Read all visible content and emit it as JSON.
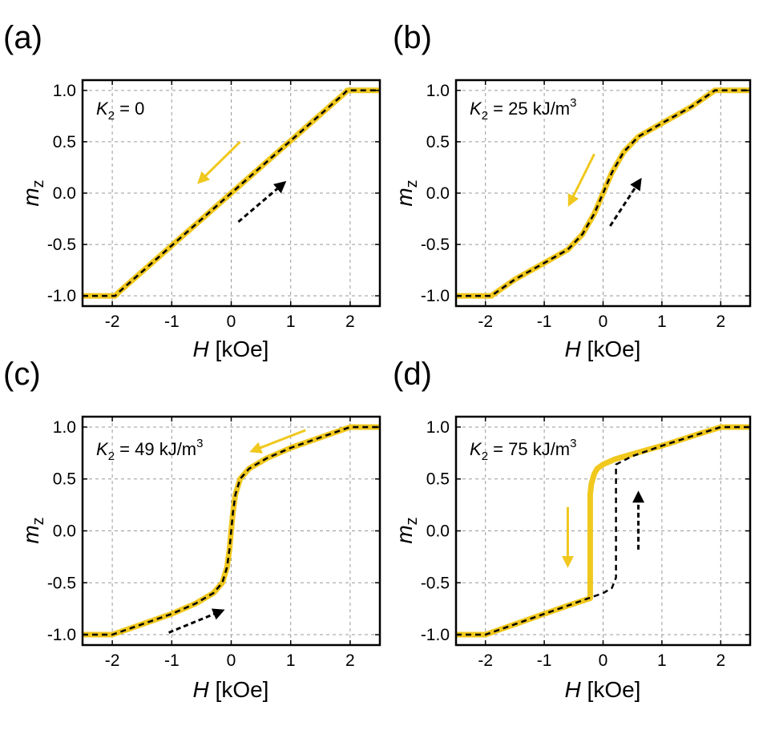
{
  "figure": {
    "colors": {
      "down_sweep": "#f0c81e",
      "up_sweep": "#000000",
      "grid": "#999999",
      "frame": "#000000"
    }
  },
  "chart_data": [
    {
      "type": "line",
      "panel": "(a)",
      "annotation": {
        "symbol": "K",
        "sub": "2",
        "eq": " = ",
        "value": "0",
        "unit": "",
        "sup": ""
      },
      "xlabel": {
        "var": "H",
        "unit": " [kOe]"
      },
      "ylabel": {
        "var": "m",
        "sub": "z"
      },
      "xlim": [
        -2.5,
        2.5
      ],
      "ylim": [
        -1.1,
        1.1
      ],
      "xticks": [
        -2,
        -1,
        0,
        1,
        2
      ],
      "xtick_labels": [
        "-2",
        "-1",
        "0",
        "1",
        "2"
      ],
      "yticks": [
        -1.0,
        -0.5,
        0.0,
        0.5,
        1.0
      ],
      "ytick_labels": [
        "-1.0",
        "-0.5",
        "0.0",
        "0.5",
        "1.0"
      ],
      "grid": true,
      "series": [
        {
          "name": "down",
          "style": "solid-yellow",
          "x": [
            2.5,
            1.95,
            1.9,
            -1.9,
            -1.95,
            -2.5
          ],
          "y": [
            1.0,
            1.0,
            0.97,
            -0.97,
            -1.0,
            -1.0
          ]
        },
        {
          "name": "up",
          "style": "dashed-black",
          "x": [
            -2.5,
            -1.95,
            -1.9,
            1.9,
            1.95,
            2.5
          ],
          "y": [
            -1.0,
            -1.0,
            -0.97,
            0.97,
            1.0,
            1.0
          ]
        }
      ],
      "arrows": [
        {
          "style": "yellow",
          "from": [
            0.15,
            0.5
          ],
          "to": [
            -0.5,
            0.13
          ]
        },
        {
          "style": "black-dashed",
          "from": [
            0.12,
            -0.28
          ],
          "to": [
            0.85,
            0.08
          ]
        }
      ]
    },
    {
      "type": "line",
      "panel": "(b)",
      "annotation": {
        "symbol": "K",
        "sub": "2",
        "eq": " = ",
        "value": "25 kJ/m",
        "unit": "",
        "sup": "3"
      },
      "xlabel": {
        "var": "H",
        "unit": " [kOe]"
      },
      "ylabel": {
        "var": "m",
        "sub": "z"
      },
      "xlim": [
        -2.5,
        2.5
      ],
      "ylim": [
        -1.1,
        1.1
      ],
      "xticks": [
        -2,
        -1,
        0,
        1,
        2
      ],
      "xtick_labels": [
        "-2",
        "-1",
        "0",
        "1",
        "2"
      ],
      "yticks": [
        -1.0,
        -0.5,
        0.0,
        0.5,
        1.0
      ],
      "ytick_labels": [
        "-1.0",
        "-0.5",
        "0.0",
        "0.5",
        "1.0"
      ],
      "grid": true,
      "series": [
        {
          "name": "down",
          "style": "solid-yellow",
          "x": [
            2.5,
            1.9,
            1.5,
            1.0,
            0.6,
            0.35,
            0.15,
            0.0,
            -0.15,
            -0.35,
            -0.6,
            -1.0,
            -1.5,
            -1.9,
            -2.5
          ],
          "y": [
            1.0,
            1.0,
            0.84,
            0.68,
            0.55,
            0.4,
            0.2,
            0.0,
            -0.2,
            -0.4,
            -0.55,
            -0.68,
            -0.84,
            -1.0,
            -1.0
          ]
        },
        {
          "name": "up",
          "style": "dashed-black",
          "x": [
            -2.5,
            -1.9,
            -1.5,
            -1.0,
            -0.6,
            -0.35,
            -0.15,
            0.0,
            0.15,
            0.35,
            0.6,
            1.0,
            1.5,
            1.9,
            2.5
          ],
          "y": [
            -1.0,
            -1.0,
            -0.84,
            -0.68,
            -0.55,
            -0.4,
            -0.2,
            0.0,
            0.2,
            0.4,
            0.55,
            0.68,
            0.84,
            1.0,
            1.0
          ]
        }
      ],
      "arrows": [
        {
          "style": "yellow",
          "from": [
            -0.15,
            0.38
          ],
          "to": [
            -0.55,
            -0.08
          ]
        },
        {
          "style": "black-dashed",
          "from": [
            0.12,
            -0.32
          ],
          "to": [
            0.6,
            0.1
          ]
        }
      ]
    },
    {
      "type": "line",
      "panel": "(c)",
      "annotation": {
        "symbol": "K",
        "sub": "2",
        "eq": " = ",
        "value": "49 kJ/m",
        "unit": "",
        "sup": "3"
      },
      "xlabel": {
        "var": "H",
        "unit": " [kOe]"
      },
      "ylabel": {
        "var": "m",
        "sub": "z"
      },
      "xlim": [
        -2.5,
        2.5
      ],
      "ylim": [
        -1.1,
        1.1
      ],
      "xticks": [
        -2,
        -1,
        0,
        1,
        2
      ],
      "xtick_labels": [
        "-2",
        "-1",
        "0",
        "1",
        "2"
      ],
      "yticks": [
        -1.0,
        -0.5,
        0.0,
        0.5,
        1.0
      ],
      "ytick_labels": [
        "-1.0",
        "-0.5",
        "0.0",
        "0.5",
        "1.0"
      ],
      "grid": true,
      "series": [
        {
          "name": "down",
          "style": "solid-yellow",
          "x": [
            2.5,
            2.0,
            1.5,
            1.0,
            0.6,
            0.3,
            0.15,
            0.07,
            0.03,
            0.0,
            -0.03,
            -0.07,
            -0.15,
            -0.3,
            -0.6,
            -1.0,
            -1.5,
            -2.0,
            -2.5
          ],
          "y": [
            1.0,
            1.0,
            0.9,
            0.8,
            0.7,
            0.6,
            0.5,
            0.35,
            0.18,
            0.0,
            -0.18,
            -0.35,
            -0.5,
            -0.6,
            -0.7,
            -0.8,
            -0.9,
            -1.0,
            -1.0
          ]
        },
        {
          "name": "up",
          "style": "dashed-black",
          "x": [
            -2.5,
            -2.0,
            -1.5,
            -1.0,
            -0.6,
            -0.3,
            -0.15,
            -0.07,
            -0.03,
            0.0,
            0.03,
            0.07,
            0.15,
            0.3,
            0.6,
            1.0,
            1.5,
            2.0,
            2.5
          ],
          "y": [
            -1.0,
            -1.0,
            -0.9,
            -0.8,
            -0.7,
            -0.6,
            -0.5,
            -0.35,
            -0.18,
            0.0,
            0.18,
            0.35,
            0.5,
            0.6,
            0.7,
            0.8,
            0.9,
            1.0,
            1.0
          ]
        }
      ],
      "arrows": [
        {
          "style": "yellow",
          "from": [
            1.25,
            0.97
          ],
          "to": [
            0.4,
            0.78
          ]
        },
        {
          "style": "black-dashed",
          "from": [
            -1.05,
            -0.98
          ],
          "to": [
            -0.2,
            -0.78
          ]
        }
      ]
    },
    {
      "type": "line",
      "panel": "(d)",
      "annotation": {
        "symbol": "K",
        "sub": "2",
        "eq": " = ",
        "value": "75 kJ/m",
        "unit": "",
        "sup": "3"
      },
      "xlabel": {
        "var": "H",
        "unit": " [kOe]"
      },
      "ylabel": {
        "var": "m",
        "sub": "z"
      },
      "xlim": [
        -2.5,
        2.5
      ],
      "ylim": [
        -1.1,
        1.1
      ],
      "xticks": [
        -2,
        -1,
        0,
        1,
        2
      ],
      "xtick_labels": [
        "-2",
        "-1",
        "0",
        "1",
        "2"
      ],
      "yticks": [
        -1.0,
        -0.5,
        0.0,
        0.5,
        1.0
      ],
      "ytick_labels": [
        "-1.0",
        "-0.5",
        "0.0",
        "0.5",
        "1.0"
      ],
      "grid": true,
      "series": [
        {
          "name": "down",
          "style": "solid-yellow",
          "x": [
            2.5,
            2.0,
            1.5,
            1.0,
            0.5,
            0.2,
            0.0,
            -0.1,
            -0.15,
            -0.2,
            -0.22,
            -0.22,
            -0.6,
            -1.0,
            -1.5,
            -2.0,
            -2.5
          ],
          "y": [
            1.0,
            1.0,
            0.91,
            0.82,
            0.74,
            0.69,
            0.64,
            0.6,
            0.55,
            0.45,
            0.35,
            -0.65,
            -0.72,
            -0.8,
            -0.9,
            -1.0,
            -1.0
          ]
        },
        {
          "name": "up",
          "style": "dashed-black",
          "x": [
            -2.5,
            -2.0,
            -1.5,
            -1.0,
            -0.6,
            -0.2,
            0.0,
            0.15,
            0.22,
            0.22,
            0.5,
            1.0,
            1.5,
            2.0,
            2.5
          ],
          "y": [
            -1.0,
            -1.0,
            -0.9,
            -0.8,
            -0.72,
            -0.64,
            -0.6,
            -0.55,
            -0.45,
            0.64,
            0.72,
            0.82,
            0.91,
            1.0,
            1.0
          ]
        }
      ],
      "arrows": [
        {
          "style": "yellow",
          "from": [
            -0.6,
            0.23
          ],
          "to": [
            -0.6,
            -0.3
          ]
        },
        {
          "style": "black-dashed",
          "from": [
            0.6,
            -0.18
          ],
          "to": [
            0.6,
            0.33
          ]
        }
      ]
    }
  ]
}
